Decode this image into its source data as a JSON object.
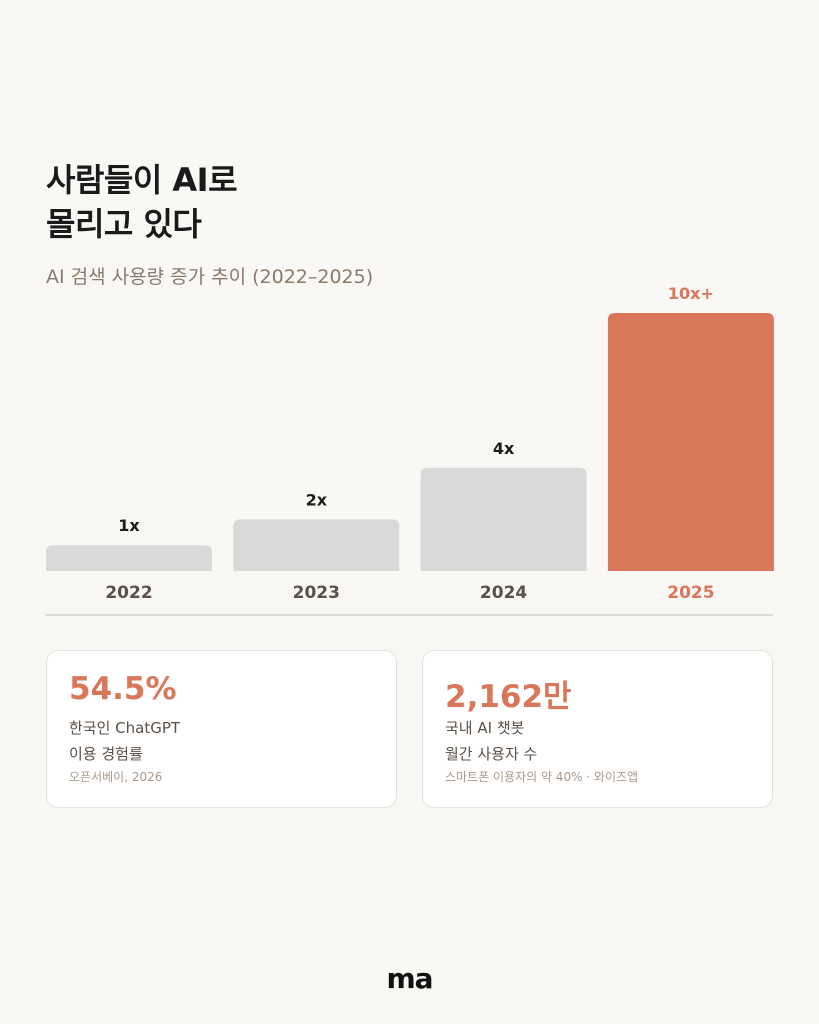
{
  "header": {
    "title_line1": "사람들이 AI로",
    "title_line2": "몰리고 있다",
    "subtitle": "AI 검색 사용량 증가 추이 (2022–2025)"
  },
  "chart_data": {
    "type": "bar",
    "categories": [
      "2022",
      "2023",
      "2024",
      "2025"
    ],
    "values": [
      1,
      2,
      4,
      10
    ],
    "data_labels": [
      "1x",
      "2x",
      "4x",
      "10x+"
    ],
    "highlight_index": 3,
    "colors": {
      "default": "#d9d9d9",
      "highlight": "#d9775a",
      "label_dark": "#1c1c1c",
      "tick": "#5b5048",
      "axis": "#d3cfca"
    }
  },
  "cards": [
    {
      "value": "54.5%",
      "desc1": "한국인 ChatGPT",
      "desc2": "이용 경험률",
      "source": "오픈서베이, 2026"
    },
    {
      "value": "2,162만",
      "desc1": "국내 AI 챗봇",
      "desc2": "월간 사용자 수",
      "source": "스마트폰 이용자의 약 40% · 와이즈앱"
    }
  ],
  "footer": {
    "logo": "ma"
  }
}
